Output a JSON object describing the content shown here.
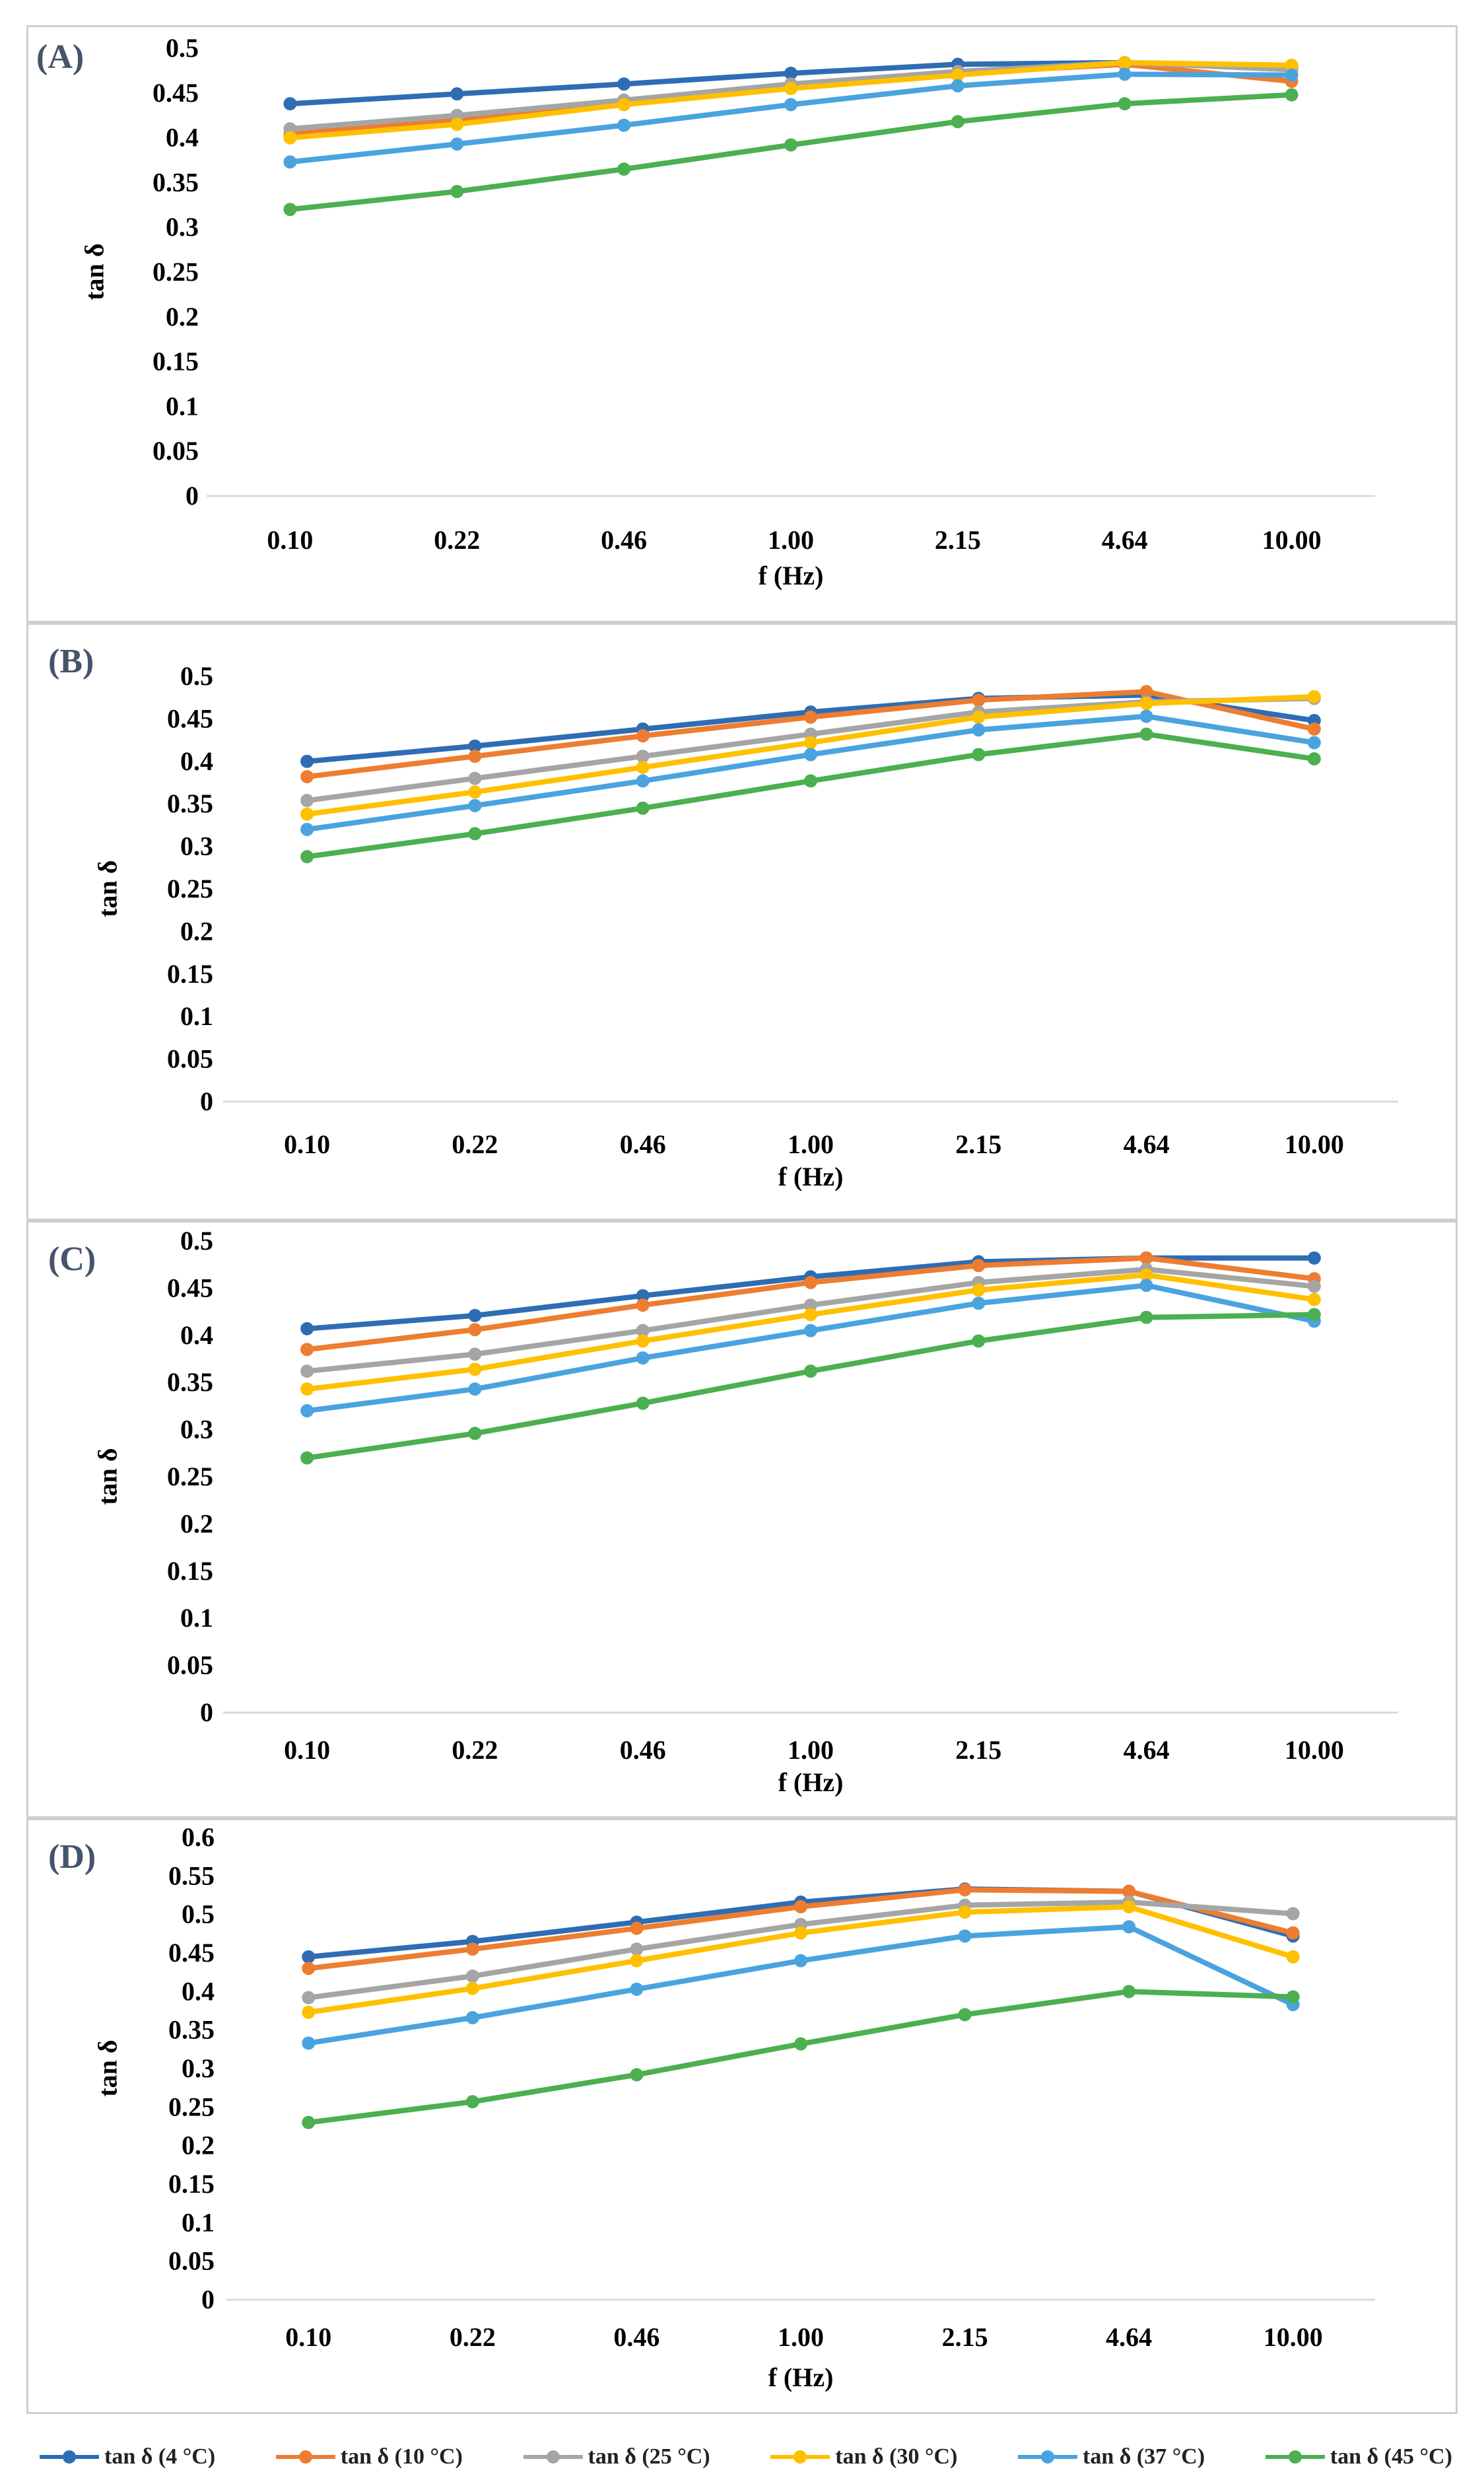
{
  "colors": {
    "s4": "#2e6db4",
    "s10": "#ed7d31",
    "s25": "#a5a5a5",
    "s30": "#ffc000",
    "s37": "#4aa3df",
    "s45": "#4caf50",
    "axis": "#d9d9d9",
    "label": "#44546a"
  },
  "legend": [
    {
      "name": "tan δ (4 °C)",
      "color_key": "s4"
    },
    {
      "name": "tan δ (10 °C)",
      "color_key": "s10"
    },
    {
      "name": "tan δ (25 °C)",
      "color_key": "s25"
    },
    {
      "name": "tan δ (30 °C)",
      "color_key": "s30"
    },
    {
      "name": "tan δ (37 °C)",
      "color_key": "s37"
    },
    {
      "name": "tan δ (45 °C)",
      "color_key": "s45"
    }
  ],
  "chart_data": [
    {
      "type": "line",
      "panel": "(A)",
      "xlabel": "f (Hz)",
      "ylabel": "tan δ",
      "categories": [
        "0.10",
        "0.22",
        "0.46",
        "1.00",
        "2.15",
        "4.64",
        "10.00"
      ],
      "ylim": [
        0,
        0.5
      ],
      "yticks": [
        "0",
        "0.05",
        "0.1",
        "0.15",
        "0.2",
        "0.25",
        "0.3",
        "0.35",
        "0.4",
        "0.45",
        "0.5"
      ],
      "series": [
        {
          "name": "tan δ (4 °C)",
          "values": [
            0.438,
            0.449,
            0.46,
            0.472,
            0.482,
            0.484,
            0.478
          ]
        },
        {
          "name": "tan δ (10 °C)",
          "values": [
            0.404,
            0.42,
            0.44,
            0.458,
            0.472,
            0.482,
            0.463
          ]
        },
        {
          "name": "tan δ (25 °C)",
          "values": [
            0.41,
            0.425,
            0.442,
            0.46,
            0.474,
            0.484,
            0.476
          ]
        },
        {
          "name": "tan δ (30 °C)",
          "values": [
            0.4,
            0.415,
            0.437,
            0.455,
            0.47,
            0.484,
            0.481
          ]
        },
        {
          "name": "tan δ (37 °C)",
          "values": [
            0.373,
            0.393,
            0.414,
            0.437,
            0.458,
            0.471,
            0.47
          ]
        },
        {
          "name": "tan δ (45 °C)",
          "values": [
            0.32,
            0.34,
            0.365,
            0.392,
            0.418,
            0.438,
            0.448
          ]
        }
      ]
    },
    {
      "type": "line",
      "panel": "(B)",
      "xlabel": "f (Hz)",
      "ylabel": "tan δ",
      "categories": [
        "0.10",
        "0.22",
        "0.46",
        "1.00",
        "2.15",
        "4.64",
        "10.00"
      ],
      "ylim": [
        0,
        0.5
      ],
      "yticks": [
        "0",
        "0.05",
        "0.1",
        "0.15",
        "0.2",
        "0.25",
        "0.3",
        "0.35",
        "0.4",
        "0.45",
        "0.5"
      ],
      "series": [
        {
          "name": "tan δ (4 °C)",
          "values": [
            0.4,
            0.418,
            0.438,
            0.458,
            0.474,
            0.478,
            0.448
          ]
        },
        {
          "name": "tan δ (10 °C)",
          "values": [
            0.382,
            0.406,
            0.43,
            0.452,
            0.472,
            0.482,
            0.438
          ]
        },
        {
          "name": "tan δ (25 °C)",
          "values": [
            0.354,
            0.38,
            0.406,
            0.432,
            0.458,
            0.47,
            0.474
          ]
        },
        {
          "name": "tan δ (30 °C)",
          "values": [
            0.338,
            0.364,
            0.393,
            0.422,
            0.452,
            0.468,
            0.476
          ]
        },
        {
          "name": "tan δ (37 °C)",
          "values": [
            0.32,
            0.348,
            0.377,
            0.408,
            0.437,
            0.453,
            0.422
          ]
        },
        {
          "name": "tan δ (45 °C)",
          "values": [
            0.288,
            0.315,
            0.345,
            0.377,
            0.408,
            0.432,
            0.403
          ]
        }
      ]
    },
    {
      "type": "line",
      "panel": "(C)",
      "xlabel": "f (Hz)",
      "ylabel": "tan δ",
      "categories": [
        "0.10",
        "0.22",
        "0.46",
        "1.00",
        "2.15",
        "4.64",
        "10.00"
      ],
      "ylim": [
        0,
        0.5
      ],
      "yticks": [
        "0",
        "0.05",
        "0.1",
        "0.15",
        "0.2",
        "0.25",
        "0.3",
        "0.35",
        "0.4",
        "0.45",
        "0.5"
      ],
      "series": [
        {
          "name": "tan δ (4 °C)",
          "values": [
            0.407,
            0.421,
            0.442,
            0.462,
            0.478,
            0.482,
            0.482
          ]
        },
        {
          "name": "tan δ (10 °C)",
          "values": [
            0.385,
            0.406,
            0.432,
            0.456,
            0.474,
            0.482,
            0.46
          ]
        },
        {
          "name": "tan δ (25 °C)",
          "values": [
            0.362,
            0.38,
            0.405,
            0.432,
            0.456,
            0.47,
            0.452
          ]
        },
        {
          "name": "tan δ (30 °C)",
          "values": [
            0.343,
            0.364,
            0.394,
            0.422,
            0.448,
            0.464,
            0.438
          ]
        },
        {
          "name": "tan δ (37 °C)",
          "values": [
            0.32,
            0.343,
            0.376,
            0.405,
            0.434,
            0.453,
            0.415
          ]
        },
        {
          "name": "tan δ (45 °C)",
          "values": [
            0.27,
            0.296,
            0.328,
            0.362,
            0.394,
            0.419,
            0.422
          ]
        }
      ]
    },
    {
      "type": "line",
      "panel": "(D)",
      "xlabel": "f (Hz)",
      "ylabel": "tan δ",
      "categories": [
        "0.10",
        "0.22",
        "0.46",
        "1.00",
        "2.15",
        "4.64",
        "10.00"
      ],
      "ylim": [
        0,
        0.6
      ],
      "yticks": [
        "0",
        "0.05",
        "0.1",
        "0.15",
        "0.2",
        "0.25",
        "0.3",
        "0.35",
        "0.4",
        "0.45",
        "0.5",
        "0.55",
        "0.6"
      ],
      "series": [
        {
          "name": "tan δ (4 °C)",
          "values": [
            0.445,
            0.465,
            0.49,
            0.516,
            0.533,
            0.53,
            0.472
          ]
        },
        {
          "name": "tan δ (10 °C)",
          "values": [
            0.43,
            0.455,
            0.482,
            0.51,
            0.532,
            0.53,
            0.476
          ]
        },
        {
          "name": "tan δ (25 °C)",
          "values": [
            0.392,
            0.42,
            0.455,
            0.487,
            0.512,
            0.516,
            0.501
          ]
        },
        {
          "name": "tan δ (30 °C)",
          "values": [
            0.373,
            0.404,
            0.44,
            0.476,
            0.503,
            0.51,
            0.445
          ]
        },
        {
          "name": "tan δ (37 °C)",
          "values": [
            0.333,
            0.366,
            0.403,
            0.44,
            0.472,
            0.484,
            0.383
          ]
        },
        {
          "name": "tan δ (45 °C)",
          "values": [
            0.23,
            0.257,
            0.292,
            0.332,
            0.37,
            0.4,
            0.393
          ]
        }
      ]
    }
  ]
}
